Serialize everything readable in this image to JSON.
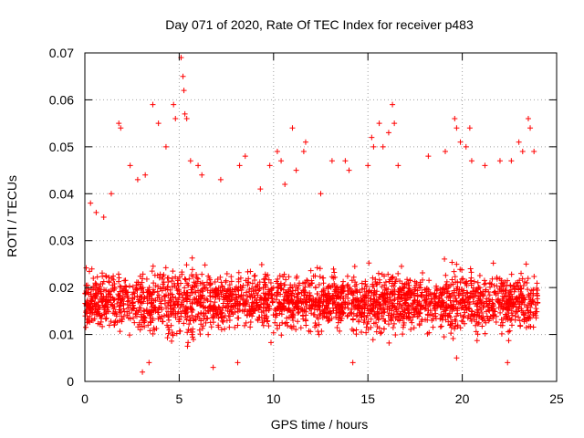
{
  "chart_data": {
    "type": "scatter",
    "title": "Day 071 of 2020, Rate Of TEC Index for receiver p483",
    "xlabel": "GPS time / hours",
    "ylabel": "ROTI / TECUs",
    "xlim": [
      0,
      25
    ],
    "ylim": [
      0,
      0.07
    ],
    "xticks": [
      0,
      5,
      10,
      15,
      20,
      25
    ],
    "xtick_labels": [
      "0",
      "5",
      "10",
      "15",
      "20",
      "25"
    ],
    "yticks": [
      0,
      0.01,
      0.02,
      0.03,
      0.04,
      0.05,
      0.06,
      0.07
    ],
    "ytick_labels": [
      "0",
      "0.01",
      "0.02",
      "0.03",
      "0.04",
      "0.05",
      "0.06",
      "0.07"
    ],
    "grid": true,
    "marker": "plus",
    "marker_color": "#ff0000",
    "series": [
      {
        "name": "ROTI",
        "data_range_x": [
          0,
          24
        ],
        "typical_y_range": [
          0.005,
          0.035
        ],
        "central_y": 0.017,
        "outliers": [
          [
            0.3,
            0.038
          ],
          [
            0.6,
            0.036
          ],
          [
            1.0,
            0.035
          ],
          [
            1.4,
            0.04
          ],
          [
            1.8,
            0.055
          ],
          [
            1.9,
            0.054
          ],
          [
            2.4,
            0.046
          ],
          [
            2.8,
            0.043
          ],
          [
            3.2,
            0.044
          ],
          [
            3.6,
            0.059
          ],
          [
            3.9,
            0.055
          ],
          [
            4.3,
            0.05
          ],
          [
            4.7,
            0.059
          ],
          [
            4.8,
            0.056
          ],
          [
            5.1,
            0.069
          ],
          [
            5.2,
            0.065
          ],
          [
            5.25,
            0.062
          ],
          [
            5.3,
            0.057
          ],
          [
            5.4,
            0.056
          ],
          [
            5.6,
            0.047
          ],
          [
            6.0,
            0.046
          ],
          [
            6.2,
            0.044
          ],
          [
            7.2,
            0.043
          ],
          [
            8.2,
            0.046
          ],
          [
            8.5,
            0.048
          ],
          [
            9.3,
            0.041
          ],
          [
            9.8,
            0.046
          ],
          [
            10.2,
            0.049
          ],
          [
            10.4,
            0.047
          ],
          [
            10.6,
            0.042
          ],
          [
            11.0,
            0.054
          ],
          [
            11.2,
            0.045
          ],
          [
            11.6,
            0.049
          ],
          [
            11.7,
            0.051
          ],
          [
            12.5,
            0.04
          ],
          [
            13.1,
            0.047
          ],
          [
            13.8,
            0.047
          ],
          [
            14.0,
            0.045
          ],
          [
            15.0,
            0.046
          ],
          [
            15.2,
            0.052
          ],
          [
            15.3,
            0.05
          ],
          [
            15.6,
            0.055
          ],
          [
            15.8,
            0.05
          ],
          [
            16.1,
            0.053
          ],
          [
            16.3,
            0.059
          ],
          [
            16.4,
            0.055
          ],
          [
            16.6,
            0.046
          ],
          [
            18.2,
            0.048
          ],
          [
            19.1,
            0.049
          ],
          [
            19.6,
            0.056
          ],
          [
            19.7,
            0.054
          ],
          [
            19.9,
            0.051
          ],
          [
            20.2,
            0.05
          ],
          [
            20.4,
            0.054
          ],
          [
            20.5,
            0.047
          ],
          [
            21.2,
            0.046
          ],
          [
            22.0,
            0.047
          ],
          [
            22.6,
            0.047
          ],
          [
            23.0,
            0.051
          ],
          [
            23.2,
            0.049
          ],
          [
            23.5,
            0.056
          ],
          [
            23.6,
            0.054
          ],
          [
            23.8,
            0.049
          ]
        ],
        "minima": [
          [
            3.05,
            0.002
          ],
          [
            3.4,
            0.004
          ],
          [
            6.8,
            0.003
          ],
          [
            8.1,
            0.004
          ],
          [
            14.2,
            0.004
          ],
          [
            19.7,
            0.005
          ],
          [
            22.4,
            0.004
          ]
        ]
      }
    ]
  }
}
